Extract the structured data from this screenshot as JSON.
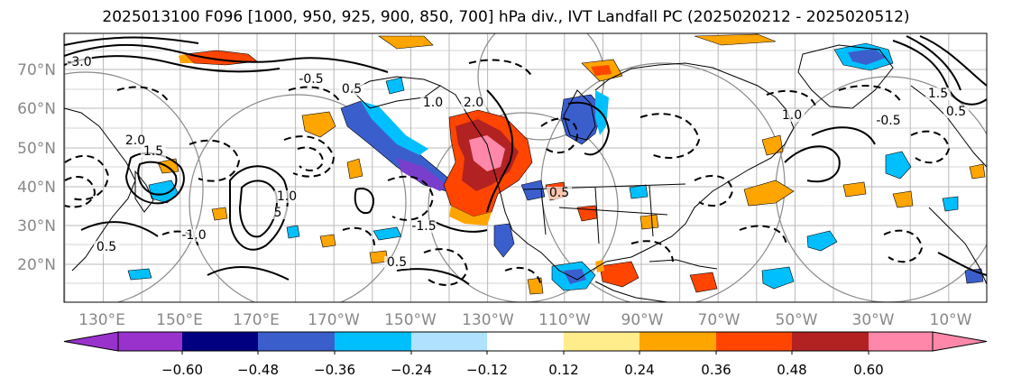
{
  "title": "2025013100 F096 [1000, 950, 925, 900, 850, 700] hPa div., IVT Landfall PC (2025020212 - 2025020512)",
  "lat_labels": [
    "70°N",
    "60°N",
    "50°N",
    "40°N",
    "30°N",
    "20°N"
  ],
  "lon_labels": [
    "130°E",
    "150°E",
    "170°E",
    "170°W",
    "150°W",
    "130°W",
    "110°W",
    "90°W",
    "70°W",
    "50°W",
    "30°W",
    "10°W"
  ],
  "contour_labels": [
    "-3.0",
    "2.0",
    "1.5",
    "0.5",
    "-1.0",
    "1.0",
    "5",
    "-0.5",
    "0.5",
    "1.0",
    "2.0",
    "0.5",
    "-1.5",
    "0.5",
    "1.0",
    "-0.5",
    "1.5",
    "0.5"
  ],
  "colorbar": {
    "tick_labels": [
      "−0.60",
      "−0.48",
      "−0.36",
      "−0.24",
      "−0.12",
      "0.12",
      "0.24",
      "0.36",
      "0.48",
      "0.60"
    ],
    "under_color": "#9932cc",
    "over_color": "#ff88aa",
    "colors": [
      "#9932cc",
      "#000080",
      "#3a5fcd",
      "#00bfff",
      "#b0e2ff",
      "#ffffff",
      "#ffec8b",
      "#ffa500",
      "#ff4500",
      "#b22222",
      "#ff88aa"
    ]
  },
  "fill_colors": {
    "neg_strong": "#7a3ecc",
    "neg_mid": "#3a5fcd",
    "neg_light": "#00bfff",
    "neg_pale": "#b0e2ff",
    "pos_pale": "#ffec8b",
    "pos_light": "#ffa500",
    "pos_mid": "#ff4500",
    "pos_strong": "#b22222",
    "pos_top": "#ff88aa"
  }
}
